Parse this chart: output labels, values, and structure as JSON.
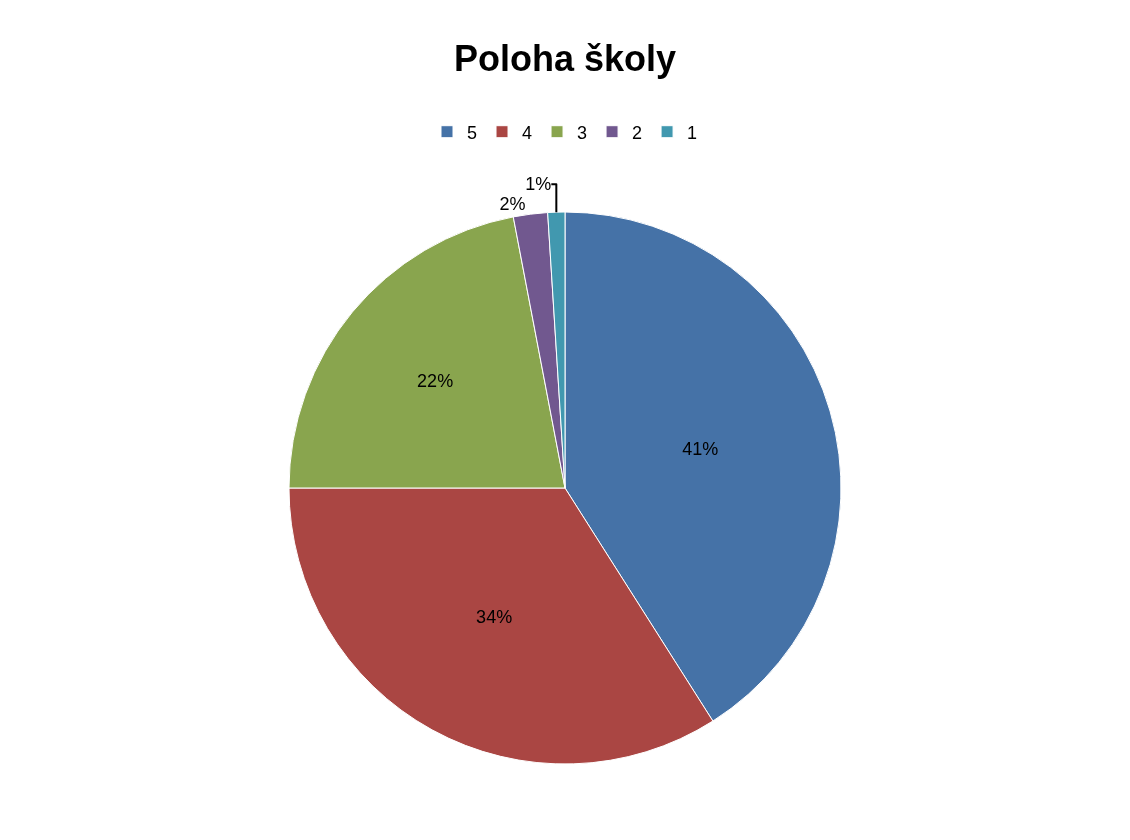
{
  "chart_data": {
    "type": "pie",
    "title": "Poloha školy",
    "categories": [
      "5",
      "4",
      "3",
      "2",
      "1"
    ],
    "values": [
      41,
      34,
      22,
      2,
      1
    ],
    "value_labels": [
      "41%",
      "34%",
      "22%",
      "2%",
      "1%"
    ],
    "colors": [
      "#4572a7",
      "#aa4643",
      "#89a54e",
      "#71588f",
      "#4198af"
    ],
    "legend": "top"
  }
}
